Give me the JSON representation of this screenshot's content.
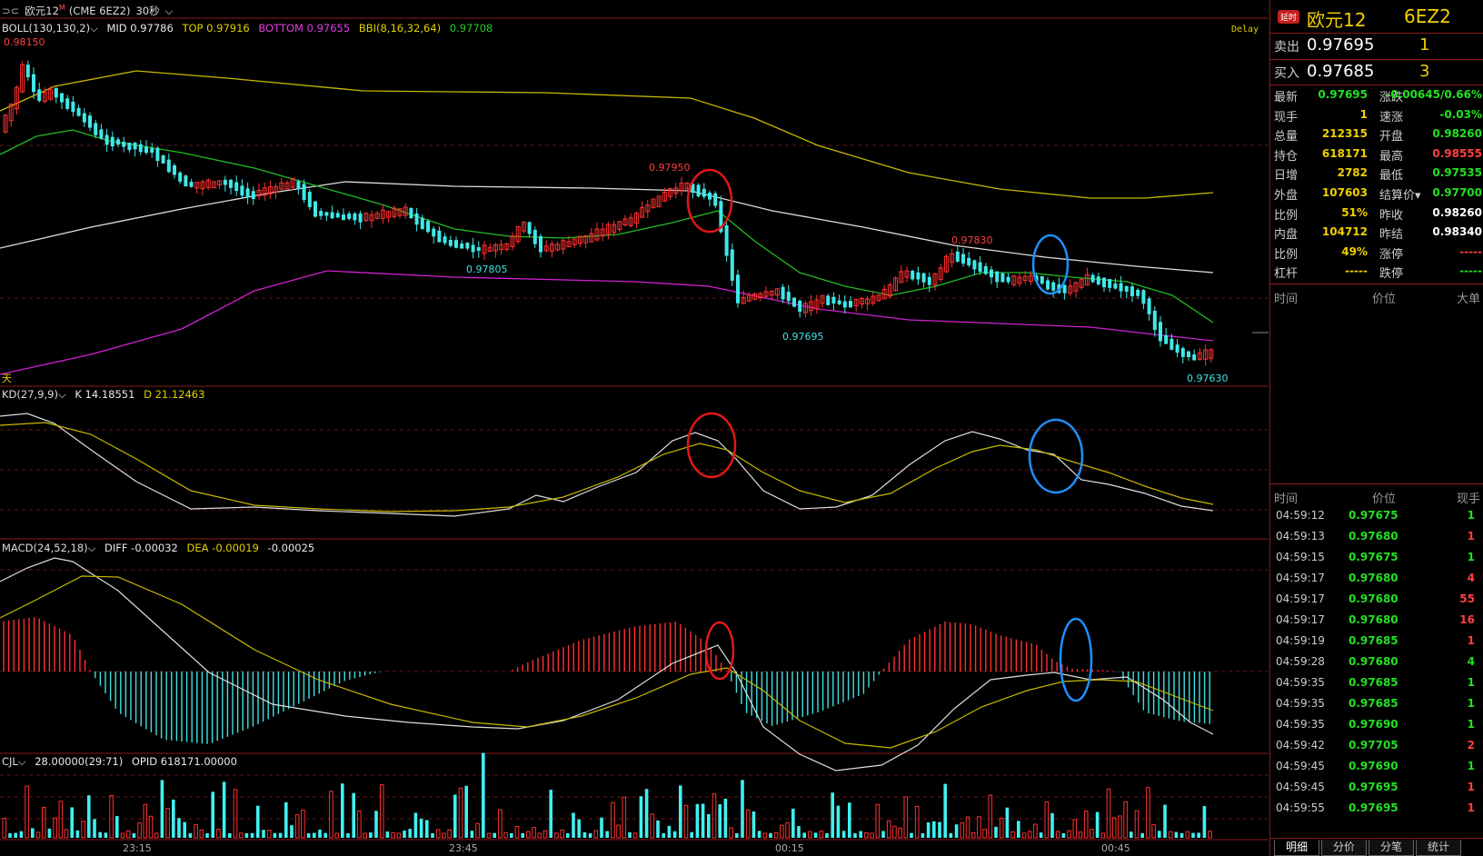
{
  "top_bar": {
    "icon_text": "⊃⊂",
    "symbol": "欧元12",
    "sup": "M",
    "exchange": "(CME 6EZ2)",
    "period": "30秒"
  },
  "boll": {
    "label": "BOLL(130,130,2)",
    "mid": "MID 0.97786",
    "top": "TOP 0.97916",
    "bottom": "BOTTOM 0.97655",
    "bbi": "BBI(8,16,32,64)",
    "bbi_val": "0.97708",
    "delay": "Delay",
    "day_mark": "天"
  },
  "annotations": {
    "high": "0.98150",
    "a1": "0.97950",
    "a2": "0.97805",
    "a3": "0.97830",
    "a4": "0.97695",
    "a5": "0.97630"
  },
  "kd": {
    "label": "KD(27,9,9)",
    "k": "K 14.18551",
    "d": "D 21.12463"
  },
  "macd": {
    "label": "MACD(24,52,18)",
    "diff": "DIFF -0.00032",
    "dea": "DEA -0.00019",
    "macd": "-0.00025"
  },
  "cjl": {
    "label": "CJL",
    "val": "28.00000(29:71)",
    "opid": "OPID 618171.00000"
  },
  "time_axis": [
    "23:15",
    "23:45",
    "00:15",
    "00:45"
  ],
  "quote": {
    "badge": "延时",
    "name": "欧元12",
    "code": "6EZ2",
    "sell_label": "卖出",
    "sell_price": "0.97695",
    "sell_qty": "1",
    "buy_label": "买入",
    "buy_price": "0.97685",
    "buy_qty": "3"
  },
  "stats": [
    {
      "k1": "最新",
      "v1": "0.97695",
      "c1": "#22e022",
      "k2": "涨跌",
      "v2": "-0.00645/0.66%",
      "c2": "#22e022"
    },
    {
      "k1": "现手",
      "v1": "1",
      "c1": "#f0d000",
      "k2": "速涨",
      "v2": "-0.03%",
      "c2": "#22e022"
    },
    {
      "k1": "总量",
      "v1": "212315",
      "c1": "#f0d000",
      "k2": "开盘",
      "v2": "0.98260",
      "c2": "#22e022"
    },
    {
      "k1": "持仓",
      "v1": "618171",
      "c1": "#f0d000",
      "k2": "最高",
      "v2": "0.98555",
      "c2": "#ff4040"
    },
    {
      "k1": "日增",
      "v1": "2782",
      "c1": "#f0d000",
      "k2": "最低",
      "v2": "0.97535",
      "c2": "#22e022"
    },
    {
      "k1": "外盘",
      "v1": "107603",
      "c1": "#f0d000",
      "k2": "结算价▾",
      "v2": "0.97700",
      "c2": "#22e022"
    },
    {
      "k1": "比例",
      "v1": "51%",
      "c1": "#f0d000",
      "k2": "昨收",
      "v2": "0.98260",
      "c2": "#ffffff"
    },
    {
      "k1": "内盘",
      "v1": "104712",
      "c1": "#f0d000",
      "k2": "昨结",
      "v2": "0.98340",
      "c2": "#ffffff"
    },
    {
      "k1": "比例",
      "v1": "49%",
      "c1": "#f0d000",
      "k2": "涨停",
      "v2": "-----",
      "c2": "#ff4040"
    },
    {
      "k1": "杠杆",
      "v1": "-----",
      "c1": "#f0d000",
      "k2": "跌停",
      "v2": "-----",
      "c2": "#22e022"
    }
  ],
  "big_hdr": {
    "time": "时间",
    "price": "价位",
    "big": "大单"
  },
  "ticks_hdr": {
    "time": "时间",
    "price": "价位",
    "vol": "现手"
  },
  "ticks": [
    {
      "t": "04:59:12",
      "p": "0.97675",
      "v": "1",
      "c": "#22e022"
    },
    {
      "t": "04:59:13",
      "p": "0.97680",
      "v": "1",
      "c": "#ff4040"
    },
    {
      "t": "04:59:15",
      "p": "0.97675",
      "v": "1",
      "c": "#22e022"
    },
    {
      "t": "04:59:17",
      "p": "0.97680",
      "v": "4",
      "c": "#ff4040"
    },
    {
      "t": "04:59:17",
      "p": "0.97680",
      "v": "55",
      "c": "#ff4040"
    },
    {
      "t": "04:59:17",
      "p": "0.97680",
      "v": "16",
      "c": "#ff4040"
    },
    {
      "t": "04:59:19",
      "p": "0.97685",
      "v": "1",
      "c": "#ff4040"
    },
    {
      "t": "04:59:28",
      "p": "0.97680",
      "v": "4",
      "c": "#22e022"
    },
    {
      "t": "04:59:35",
      "p": "0.97685",
      "v": "1",
      "c": "#22e022"
    },
    {
      "t": "04:59:35",
      "p": "0.97685",
      "v": "1",
      "c": "#22e022"
    },
    {
      "t": "04:59:35",
      "p": "0.97690",
      "v": "1",
      "c": "#22e022"
    },
    {
      "t": "04:59:42",
      "p": "0.97705",
      "v": "2",
      "c": "#ff4040"
    },
    {
      "t": "04:59:45",
      "p": "0.97690",
      "v": "1",
      "c": "#22e022"
    },
    {
      "t": "04:59:45",
      "p": "0.97695",
      "v": "1",
      "c": "#ff4040"
    },
    {
      "t": "04:59:55",
      "p": "0.97695",
      "v": "1",
      "c": "#ff4040"
    }
  ],
  "tabs": [
    "明细",
    "分价",
    "分笔",
    "统计"
  ]
}
